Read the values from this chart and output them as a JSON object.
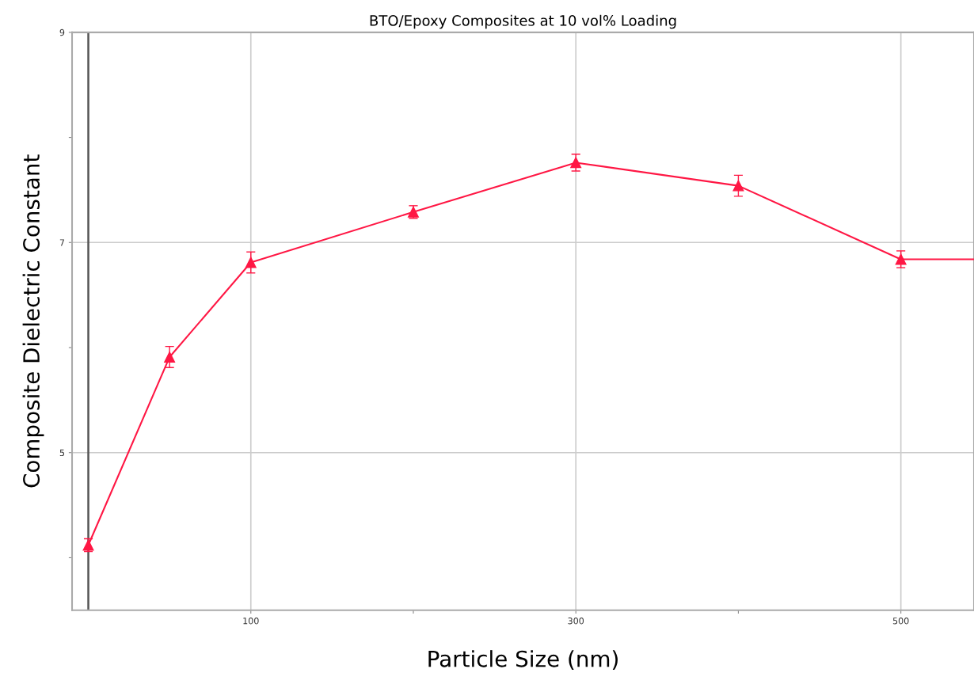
{
  "chart_data": {
    "type": "line",
    "title": "BTO/Epoxy Composites at 10 vol% Loading",
    "xlabel": "Particle Size (nm)",
    "ylabel": "Composite Dielectric Constant",
    "xlim": [
      -10,
      545
    ],
    "ylim": [
      3.5,
      9
    ],
    "xticks": [
      {
        "value": 100,
        "label": "100"
      },
      {
        "value": 200,
        "label": null
      },
      {
        "value": 300,
        "label": "300"
      },
      {
        "value": 400,
        "label": null
      },
      {
        "value": 500,
        "label": "500"
      }
    ],
    "yticks": [
      {
        "value": 4,
        "label": null
      },
      {
        "value": 5,
        "label": "5"
      },
      {
        "value": 6,
        "label": null
      },
      {
        "value": 7,
        "label": "7"
      },
      {
        "value": 8,
        "label": null
      },
      {
        "value": 9,
        "label": "9"
      }
    ],
    "grid": true,
    "marker": "triangle",
    "line_style": "solid",
    "ref_lines": [
      {
        "axis": "x",
        "value": 0,
        "color": "#555555"
      }
    ],
    "series": [
      {
        "color": "#ff1744",
        "x": [
          0,
          50,
          100,
          200,
          300,
          400,
          500
        ],
        "values": [
          4.12,
          5.91,
          6.81,
          7.29,
          7.76,
          7.54,
          6.84
        ],
        "errors": [
          0.06,
          0.1,
          0.1,
          0.06,
          0.08,
          0.1,
          0.08
        ]
      },
      {
        "color": "#ff1744",
        "marker": "none",
        "x": [
          500,
          545
        ],
        "values": [
          6.84,
          6.84
        ]
      }
    ]
  }
}
